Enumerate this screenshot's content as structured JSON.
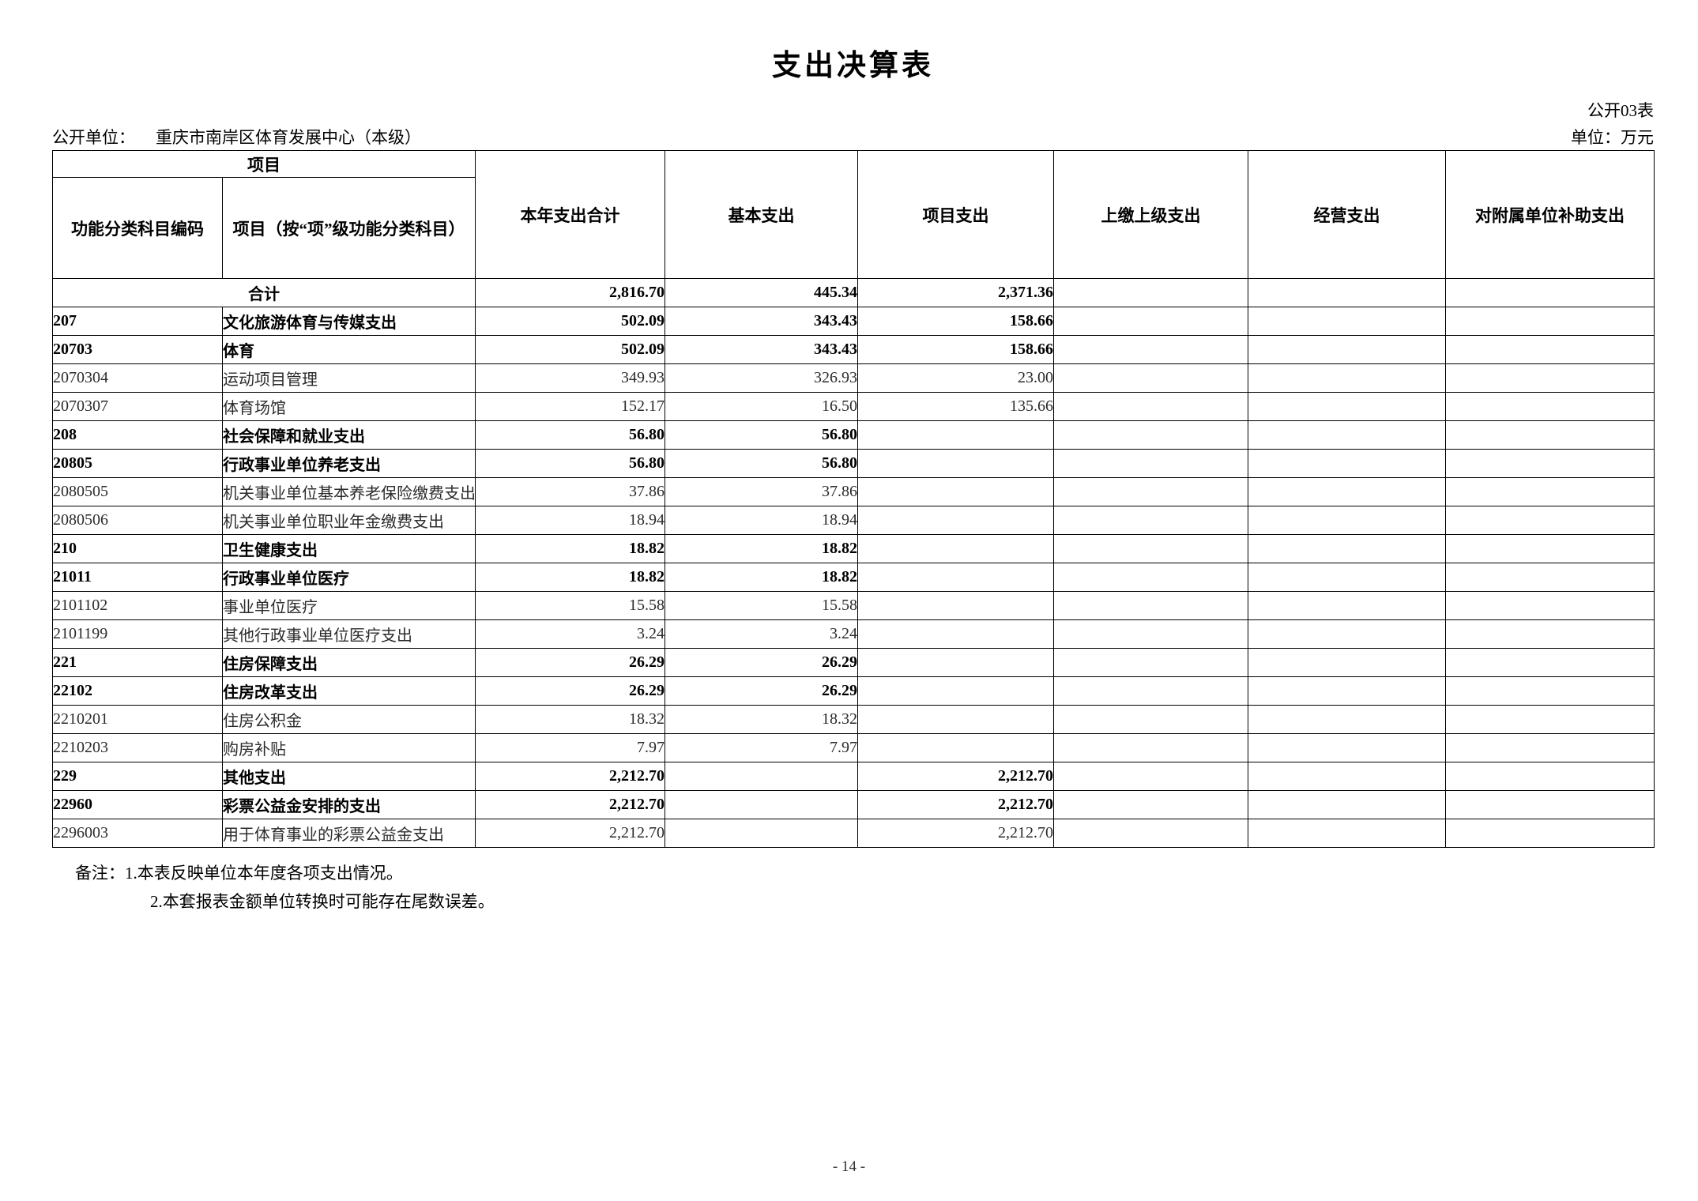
{
  "page": {
    "title": "支出决算表",
    "doc_code": "公开03表",
    "org_label": "公开单位：",
    "org_name": "重庆市南岸区体育发展中心（本级）",
    "unit_note": "单位：万元",
    "page_number": "- 14 -"
  },
  "table": {
    "header": {
      "group": "项目",
      "code_col": "功能分类科目编码",
      "name_col": "项目（按“项”级功能分类科目）",
      "value_cols": [
        "本年支出合计",
        "基本支出",
        "项目支出",
        "上缴上级支出",
        "经营支出",
        "对附属单位补助支出"
      ]
    },
    "total_row": {
      "label": "合计",
      "values": [
        "2,816.70",
        "445.34",
        "2,371.36",
        "",
        "",
        ""
      ]
    },
    "rows": [
      {
        "code": "207",
        "name": "文化旅游体育与传媒支出",
        "values": [
          "502.09",
          "343.43",
          "158.66",
          "",
          "",
          ""
        ],
        "bold": true
      },
      {
        "code": "20703",
        "name": "体育",
        "values": [
          "502.09",
          "343.43",
          "158.66",
          "",
          "",
          ""
        ],
        "bold": true
      },
      {
        "code": "2070304",
        "name": "运动项目管理",
        "values": [
          "349.93",
          "326.93",
          "23.00",
          "",
          "",
          ""
        ],
        "bold": false
      },
      {
        "code": "2070307",
        "name": "体育场馆",
        "values": [
          "152.17",
          "16.50",
          "135.66",
          "",
          "",
          ""
        ],
        "bold": false
      },
      {
        "code": "208",
        "name": "社会保障和就业支出",
        "values": [
          "56.80",
          "56.80",
          "",
          "",
          "",
          ""
        ],
        "bold": true
      },
      {
        "code": "20805",
        "name": "行政事业单位养老支出",
        "values": [
          "56.80",
          "56.80",
          "",
          "",
          "",
          ""
        ],
        "bold": true
      },
      {
        "code": "2080505",
        "name": "机关事业单位基本养老保险缴费支出",
        "values": [
          "37.86",
          "37.86",
          "",
          "",
          "",
          ""
        ],
        "bold": false
      },
      {
        "code": "2080506",
        "name": "机关事业单位职业年金缴费支出",
        "values": [
          "18.94",
          "18.94",
          "",
          "",
          "",
          ""
        ],
        "bold": false
      },
      {
        "code": "210",
        "name": "卫生健康支出",
        "values": [
          "18.82",
          "18.82",
          "",
          "",
          "",
          ""
        ],
        "bold": true
      },
      {
        "code": "21011",
        "name": "行政事业单位医疗",
        "values": [
          "18.82",
          "18.82",
          "",
          "",
          "",
          ""
        ],
        "bold": true
      },
      {
        "code": "2101102",
        "name": "事业单位医疗",
        "values": [
          "15.58",
          "15.58",
          "",
          "",
          "",
          ""
        ],
        "bold": false
      },
      {
        "code": "2101199",
        "name": "其他行政事业单位医疗支出",
        "values": [
          "3.24",
          "3.24",
          "",
          "",
          "",
          ""
        ],
        "bold": false
      },
      {
        "code": "221",
        "name": "住房保障支出",
        "values": [
          "26.29",
          "26.29",
          "",
          "",
          "",
          ""
        ],
        "bold": true
      },
      {
        "code": "22102",
        "name": "住房改革支出",
        "values": [
          "26.29",
          "26.29",
          "",
          "",
          "",
          ""
        ],
        "bold": true
      },
      {
        "code": "2210201",
        "name": "住房公积金",
        "values": [
          "18.32",
          "18.32",
          "",
          "",
          "",
          ""
        ],
        "bold": false
      },
      {
        "code": "2210203",
        "name": "购房补贴",
        "values": [
          "7.97",
          "7.97",
          "",
          "",
          "",
          ""
        ],
        "bold": false
      },
      {
        "code": "229",
        "name": "其他支出",
        "values": [
          "2,212.70",
          "",
          "2,212.70",
          "",
          "",
          ""
        ],
        "bold": true
      },
      {
        "code": "22960",
        "name": "彩票公益金安排的支出",
        "values": [
          "2,212.70",
          "",
          "2,212.70",
          "",
          "",
          ""
        ],
        "bold": true
      },
      {
        "code": "2296003",
        "name": "用于体育事业的彩票公益金支出",
        "values": [
          "2,212.70",
          "",
          "2,212.70",
          "",
          "",
          ""
        ],
        "bold": false
      }
    ]
  },
  "notes": {
    "line1": "备注：1.本表反映单位本年度各项支出情况。",
    "line2": "2.本套报表金额单位转换时可能存在尾数误差。"
  }
}
